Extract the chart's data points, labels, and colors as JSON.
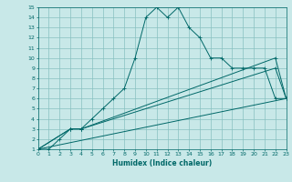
{
  "xlabel": "Humidex (Indice chaleur)",
  "bg_color": "#c8e8e8",
  "grid_color": "#88c0c0",
  "line_color": "#006868",
  "xlim": [
    0,
    23
  ],
  "ylim": [
    1,
    15
  ],
  "xticks": [
    0,
    1,
    2,
    3,
    4,
    5,
    6,
    7,
    8,
    9,
    10,
    11,
    12,
    13,
    14,
    15,
    16,
    17,
    18,
    19,
    20,
    21,
    22,
    23
  ],
  "yticks": [
    1,
    2,
    3,
    4,
    5,
    6,
    7,
    8,
    9,
    10,
    11,
    12,
    13,
    14,
    15
  ],
  "series1_x": [
    0,
    1,
    2,
    3,
    4,
    5,
    6,
    7,
    8,
    9,
    10,
    11,
    12,
    13,
    14,
    15,
    16,
    17,
    18,
    19,
    20,
    21,
    22,
    23
  ],
  "series1_y": [
    1,
    1,
    2,
    3,
    3,
    4,
    5,
    6,
    7,
    10,
    14,
    15,
    14,
    15,
    13,
    12,
    10,
    10,
    9,
    9,
    9,
    9,
    6,
    6
  ],
  "series2_x": [
    0,
    3,
    4,
    22,
    23
  ],
  "series2_y": [
    1,
    3,
    3,
    10,
    6
  ],
  "series3_x": [
    0,
    3,
    4,
    22,
    23
  ],
  "series3_y": [
    1,
    3,
    3,
    9,
    6
  ],
  "series4_x": [
    0,
    23
  ],
  "series4_y": [
    1,
    6
  ]
}
